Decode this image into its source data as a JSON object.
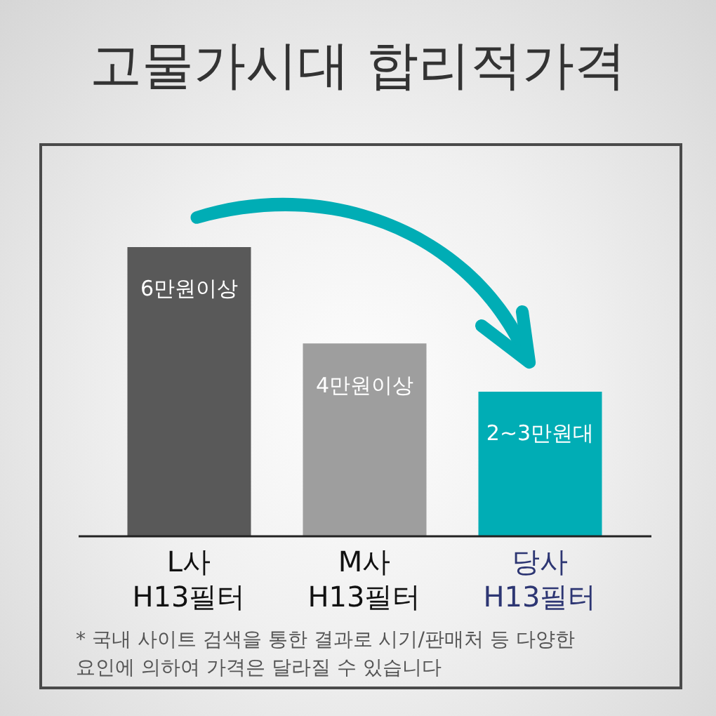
{
  "chart_data": {
    "type": "bar",
    "title": "고물가시대 합리적가격",
    "categories": [
      "L사 H13필터",
      "M사 H13필터",
      "당사 H13필터"
    ],
    "values": [
      6,
      4,
      3
    ],
    "colors": [
      "#595959",
      "#9e9e9e",
      "#00adb5"
    ],
    "tick_labels": "x",
    "value_labels": [
      "6만원이상",
      "4만원이상",
      "2~3만원대"
    ],
    "annotations": [
      "* 국내 사이트 검색을 통한 결과로 시기/판매처 등 다양한 요인에 의하여 가격은 달라질 수 있습니다"
    ]
  }
}
